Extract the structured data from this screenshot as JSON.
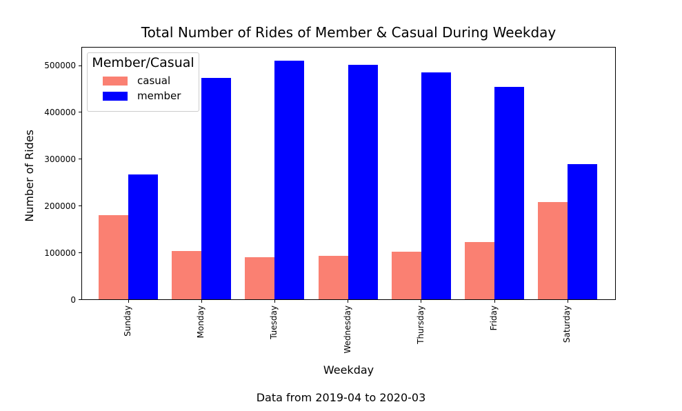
{
  "chart_data": {
    "type": "bar",
    "title": "Total Number of Rides of Member & Casual During Weekday",
    "xlabel": "Weekday",
    "ylabel": "Number of Rides",
    "footer": "Data from 2019-04 to 2020-03",
    "categories": [
      "Sunday",
      "Monday",
      "Tuesday",
      "Wednesday",
      "Thursday",
      "Friday",
      "Saturday"
    ],
    "series": [
      {
        "name": "casual",
        "color": "#FA8072",
        "values": [
          181000,
          104000,
          91000,
          93000,
          103000,
          123000,
          209000
        ]
      },
      {
        "name": "member",
        "color": "#0000FF",
        "values": [
          268000,
          473000,
          510000,
          501000,
          485000,
          454000,
          289000
        ]
      }
    ],
    "legend": {
      "title": "Member/Casual",
      "position": "upper left"
    },
    "ylim": [
      0,
      540000
    ],
    "yticks": [
      0,
      100000,
      200000,
      300000,
      400000,
      500000
    ],
    "xtick_rotation": 90,
    "grid": false,
    "axis_color": "#000000",
    "background_color": "#ffffff"
  }
}
